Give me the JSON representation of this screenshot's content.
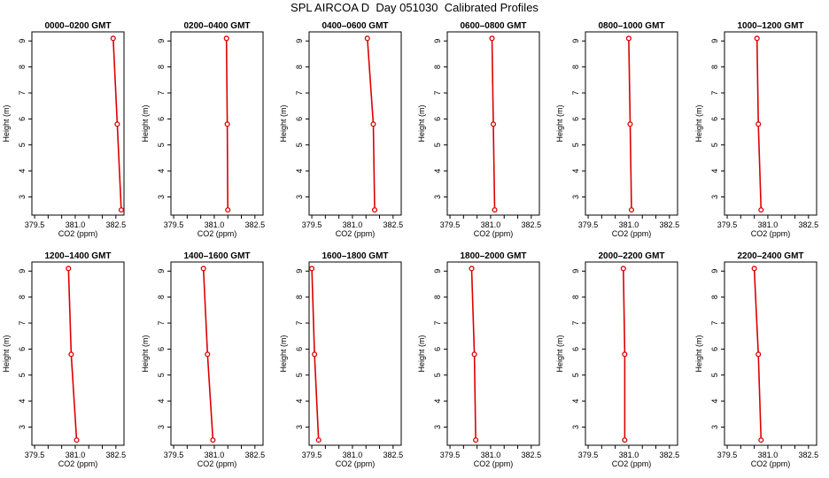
{
  "title": "SPL AIRCOA D  Day 051030  Calibrated Profiles",
  "chart_data": [
    {
      "type": "line",
      "title": "0000–0200 GMT",
      "xlabel": "CO2 (ppm)",
      "ylabel": "Height (m)",
      "xlim": [
        379.4,
        382.8
      ],
      "ylim": [
        2.3,
        9.35
      ],
      "xticks": [
        "379.5",
        "381.0",
        "382.5"
      ],
      "xticks_minor": [
        380.0,
        380.5,
        381.5,
        382.0
      ],
      "yticks": [
        "3",
        "4",
        "5",
        "6",
        "7",
        "8",
        "9"
      ],
      "x": [
        382.4,
        382.55,
        382.7
      ],
      "y": [
        9.1,
        5.8,
        2.5
      ],
      "color": "#dd0000"
    },
    {
      "type": "line",
      "title": "0200–0400 GMT",
      "xlabel": "CO2 (ppm)",
      "ylabel": "Height (m)",
      "xlim": [
        379.4,
        382.8
      ],
      "ylim": [
        2.3,
        9.35
      ],
      "xticks": [
        "379.5",
        "381.0",
        "382.5"
      ],
      "xticks_minor": [
        380.0,
        380.5,
        381.5,
        382.0
      ],
      "yticks": [
        "3",
        "4",
        "5",
        "6",
        "7",
        "8",
        "9"
      ],
      "x": [
        381.45,
        381.48,
        381.5
      ],
      "y": [
        9.1,
        5.8,
        2.5
      ],
      "color": "#dd0000"
    },
    {
      "type": "line",
      "title": "0400–0600 GMT",
      "xlabel": "CO2 (ppm)",
      "ylabel": "Height (m)",
      "xlim": [
        379.4,
        382.8
      ],
      "ylim": [
        2.3,
        9.35
      ],
      "xticks": [
        "379.5",
        "381.0",
        "382.5"
      ],
      "xticks_minor": [
        380.0,
        380.5,
        381.5,
        382.0
      ],
      "yticks": [
        "3",
        "4",
        "5",
        "6",
        "7",
        "8",
        "9"
      ],
      "x": [
        381.55,
        381.77,
        381.82
      ],
      "y": [
        9.1,
        5.8,
        2.5
      ],
      "color": "#dd0000"
    },
    {
      "type": "line",
      "title": "0600–0800 GMT",
      "xlabel": "CO2 (ppm)",
      "ylabel": "Height (m)",
      "xlim": [
        379.4,
        382.8
      ],
      "ylim": [
        2.3,
        9.35
      ],
      "xticks": [
        "379.5",
        "381.0",
        "382.5"
      ],
      "xticks_minor": [
        380.0,
        380.5,
        381.5,
        382.0
      ],
      "yticks": [
        "3",
        "4",
        "5",
        "6",
        "7",
        "8",
        "9"
      ],
      "x": [
        381.05,
        381.1,
        381.15
      ],
      "y": [
        9.1,
        5.8,
        2.5
      ],
      "color": "#dd0000"
    },
    {
      "type": "line",
      "title": "0800–1000 GMT",
      "xlabel": "CO2 (ppm)",
      "ylabel": "Height (m)",
      "xlim": [
        379.4,
        382.8
      ],
      "ylim": [
        2.3,
        9.35
      ],
      "xticks": [
        "379.5",
        "381.0",
        "382.5"
      ],
      "xticks_minor": [
        380.0,
        380.5,
        381.5,
        382.0
      ],
      "yticks": [
        "3",
        "4",
        "5",
        "6",
        "7",
        "8",
        "9"
      ],
      "x": [
        381.0,
        381.05,
        381.1
      ],
      "y": [
        9.1,
        5.8,
        2.5
      ],
      "color": "#dd0000"
    },
    {
      "type": "line",
      "title": "1000–1200 GMT",
      "xlabel": "CO2 (ppm)",
      "ylabel": "Height (m)",
      "xlim": [
        379.4,
        382.8
      ],
      "ylim": [
        2.3,
        9.35
      ],
      "xticks": [
        "379.5",
        "381.0",
        "382.5"
      ],
      "xticks_minor": [
        380.0,
        380.5,
        381.5,
        382.0
      ],
      "yticks": [
        "3",
        "4",
        "5",
        "6",
        "7",
        "8",
        "9"
      ],
      "x": [
        380.6,
        380.65,
        380.75
      ],
      "y": [
        9.1,
        5.8,
        2.5
      ],
      "color": "#dd0000"
    },
    {
      "type": "line",
      "title": "1200–1400 GMT",
      "xlabel": "CO2 (ppm)",
      "ylabel": "Height (m)",
      "xlim": [
        379.4,
        382.8
      ],
      "ylim": [
        2.3,
        9.35
      ],
      "xticks": [
        "379.5",
        "381.0",
        "382.5"
      ],
      "xticks_minor": [
        380.0,
        380.5,
        381.5,
        382.0
      ],
      "yticks": [
        "3",
        "4",
        "5",
        "6",
        "7",
        "8",
        "9"
      ],
      "x": [
        380.75,
        380.85,
        381.05
      ],
      "y": [
        9.1,
        5.8,
        2.5
      ],
      "color": "#dd0000"
    },
    {
      "type": "line",
      "title": "1400–1600 GMT",
      "xlabel": "CO2 (ppm)",
      "ylabel": "Height (m)",
      "xlim": [
        379.4,
        382.8
      ],
      "ylim": [
        2.3,
        9.35
      ],
      "xticks": [
        "379.5",
        "381.0",
        "382.5"
      ],
      "xticks_minor": [
        380.0,
        380.5,
        381.5,
        382.0
      ],
      "yticks": [
        "3",
        "4",
        "5",
        "6",
        "7",
        "8",
        "9"
      ],
      "x": [
        380.6,
        380.75,
        380.95
      ],
      "y": [
        9.1,
        5.8,
        2.5
      ],
      "color": "#dd0000"
    },
    {
      "type": "line",
      "title": "1600–1800 GMT",
      "xlabel": "CO2 (ppm)",
      "ylabel": "Height (m)",
      "xlim": [
        379.4,
        382.8
      ],
      "ylim": [
        2.3,
        9.35
      ],
      "xticks": [
        "379.5",
        "381.0",
        "382.5"
      ],
      "xticks_minor": [
        380.0,
        380.5,
        381.5,
        382.0
      ],
      "yticks": [
        "3",
        "4",
        "5",
        "6",
        "7",
        "8",
        "9"
      ],
      "x": [
        379.5,
        379.6,
        379.75
      ],
      "y": [
        9.1,
        5.8,
        2.5
      ],
      "color": "#dd0000"
    },
    {
      "type": "line",
      "title": "1800–2000 GMT",
      "xlabel": "CO2 (ppm)",
      "ylabel": "Height (m)",
      "xlim": [
        379.4,
        382.8
      ],
      "ylim": [
        2.3,
        9.35
      ],
      "xticks": [
        "379.5",
        "381.0",
        "382.5"
      ],
      "xticks_minor": [
        380.0,
        380.5,
        381.5,
        382.0
      ],
      "yticks": [
        "3",
        "4",
        "5",
        "6",
        "7",
        "8",
        "9"
      ],
      "x": [
        380.3,
        380.4,
        380.45
      ],
      "y": [
        9.1,
        5.8,
        2.5
      ],
      "color": "#dd0000"
    },
    {
      "type": "line",
      "title": "2000–2200 GMT",
      "xlabel": "CO2 (ppm)",
      "ylabel": "Height (m)",
      "xlim": [
        379.4,
        382.8
      ],
      "ylim": [
        2.3,
        9.35
      ],
      "xticks": [
        "379.5",
        "381.0",
        "382.5"
      ],
      "xticks_minor": [
        380.0,
        380.5,
        381.5,
        382.0
      ],
      "yticks": [
        "3",
        "4",
        "5",
        "6",
        "7",
        "8",
        "9"
      ],
      "x": [
        380.8,
        380.85,
        380.85
      ],
      "y": [
        9.1,
        5.8,
        2.5
      ],
      "color": "#dd0000"
    },
    {
      "type": "line",
      "title": "2200–2400 GMT",
      "xlabel": "CO2 (ppm)",
      "ylabel": "Height (m)",
      "xlim": [
        379.4,
        382.8
      ],
      "ylim": [
        2.3,
        9.35
      ],
      "xticks": [
        "379.5",
        "381.0",
        "382.5"
      ],
      "xticks_minor": [
        380.0,
        380.5,
        381.5,
        382.0
      ],
      "yticks": [
        "3",
        "4",
        "5",
        "6",
        "7",
        "8",
        "9"
      ],
      "x": [
        380.5,
        380.65,
        380.75
      ],
      "y": [
        9.1,
        5.8,
        2.5
      ],
      "color": "#dd0000"
    }
  ]
}
